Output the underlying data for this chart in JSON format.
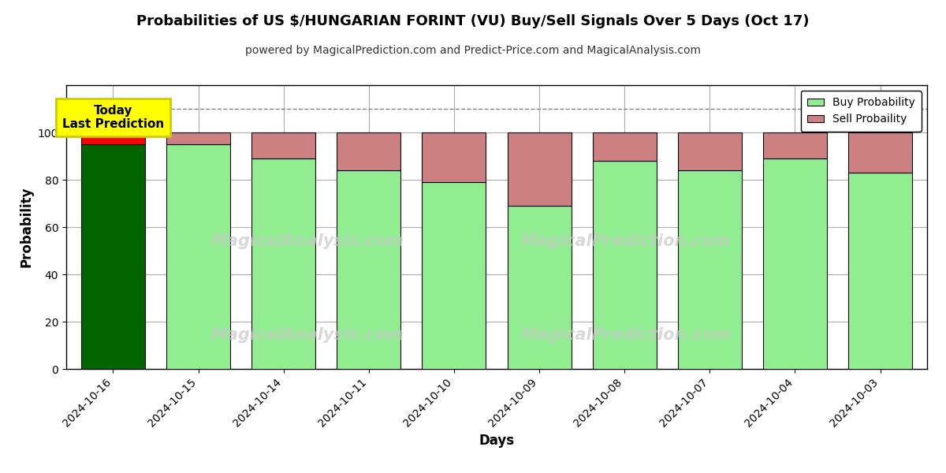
{
  "title": "Probabilities of US $/HUNGARIAN FORINT (VU) Buy/Sell Signals Over 5 Days (Oct 17)",
  "subtitle": "powered by MagicalPrediction.com and Predict-Price.com and MagicalAnalysis.com",
  "xlabel": "Days",
  "ylabel": "Probability",
  "dates": [
    "2024-10-16",
    "2024-10-15",
    "2024-10-14",
    "2024-10-11",
    "2024-10-10",
    "2024-10-09",
    "2024-10-08",
    "2024-10-07",
    "2024-10-04",
    "2024-10-03"
  ],
  "buy_probs": [
    95,
    95,
    89,
    84,
    79,
    69,
    88,
    84,
    89,
    83
  ],
  "sell_probs": [
    5,
    5,
    11,
    16,
    21,
    31,
    12,
    16,
    11,
    17
  ],
  "today_buy_color": "#006400",
  "today_sell_color": "#FF0000",
  "buy_color": "#90EE90",
  "sell_color": "#CD8080",
  "bar_edge_color": "#000000",
  "today_annotation_bg": "#FFFF00",
  "today_annotation_text": "Today\nLast Prediction",
  "ylim": [
    0,
    120
  ],
  "yticks": [
    0,
    20,
    40,
    60,
    80,
    100
  ],
  "dashed_line_y": 110,
  "legend_buy": "Buy Probability",
  "legend_sell": "Sell Probaility",
  "watermark_left": "MagicalAnalysis.com",
  "watermark_right": "MagicalPrediction.com",
  "background_color": "#ffffff",
  "grid_color": "#aaaaaa",
  "bar_width": 0.75
}
